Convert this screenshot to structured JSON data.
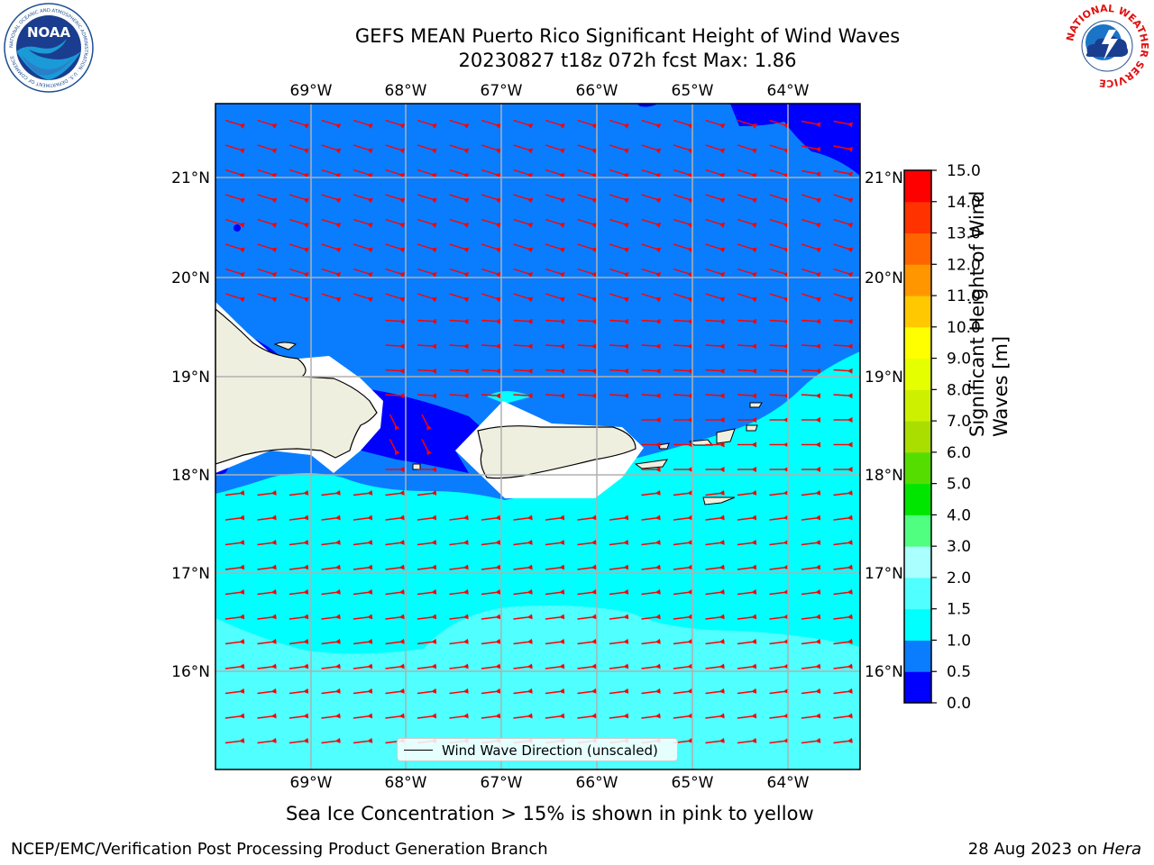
{
  "header": {
    "title_line1": "GEFS MEAN Puerto Rico Significant Height of Wind Waves",
    "title_line2": "20230827 t18z 072h fcst   Max: 1.86"
  },
  "logos": {
    "left": {
      "icon": "noaa-logo",
      "text": "NOAA",
      "ring_text": "NATIONAL OCEANIC AND ATMOSPHERIC ADMINISTRATION · U.S. DEPARTMENT OF COMMERCE"
    },
    "right": {
      "icon": "nws-logo",
      "ring_text": "NATIONAL WEATHER SERVICE"
    }
  },
  "map": {
    "lon_labels": [
      "69°W",
      "68°W",
      "67°W",
      "66°W",
      "65°W",
      "64°W"
    ],
    "lat_labels": [
      "21°N",
      "20°N",
      "19°N",
      "18°N",
      "17°N",
      "16°N"
    ],
    "lon_range": [
      -70.0,
      -63.3
    ],
    "lat_range": [
      15.0,
      21.75
    ],
    "arrow_color": "#ff0000",
    "land_color": "#efefe0",
    "legend_label": "Wind Wave Direction (unscaled)"
  },
  "colorbar": {
    "title_line1": "Significant Height of Wind",
    "title_line2": "Waves [m]",
    "ticks": [
      "0.0",
      "0.5",
      "1.0",
      "1.5",
      "2.0",
      "3.0",
      "4.0",
      "5.0",
      "6.0",
      "7.0",
      "8.0",
      "9.0",
      "10.0",
      "11.0",
      "12.0",
      "13.0",
      "14.0",
      "15.0"
    ],
    "colors": [
      "#0000ff",
      "#0a7dff",
      "#00ffff",
      "#50ffff",
      "#aaffff",
      "#50ff80",
      "#00e600",
      "#55dd00",
      "#aadd00",
      "#ccf000",
      "#e6ff00",
      "#ffff00",
      "#ffc800",
      "#ff9600",
      "#ff6400",
      "#ff3200",
      "#ff0000"
    ]
  },
  "footer": {
    "note": "Sea Ice Concentration > 15% is shown in pink to yellow",
    "credit": "NCEP/EMC/Verification Post Processing Product Generation Branch",
    "date": "28 Aug 2023 on ",
    "machine": "Hera"
  }
}
